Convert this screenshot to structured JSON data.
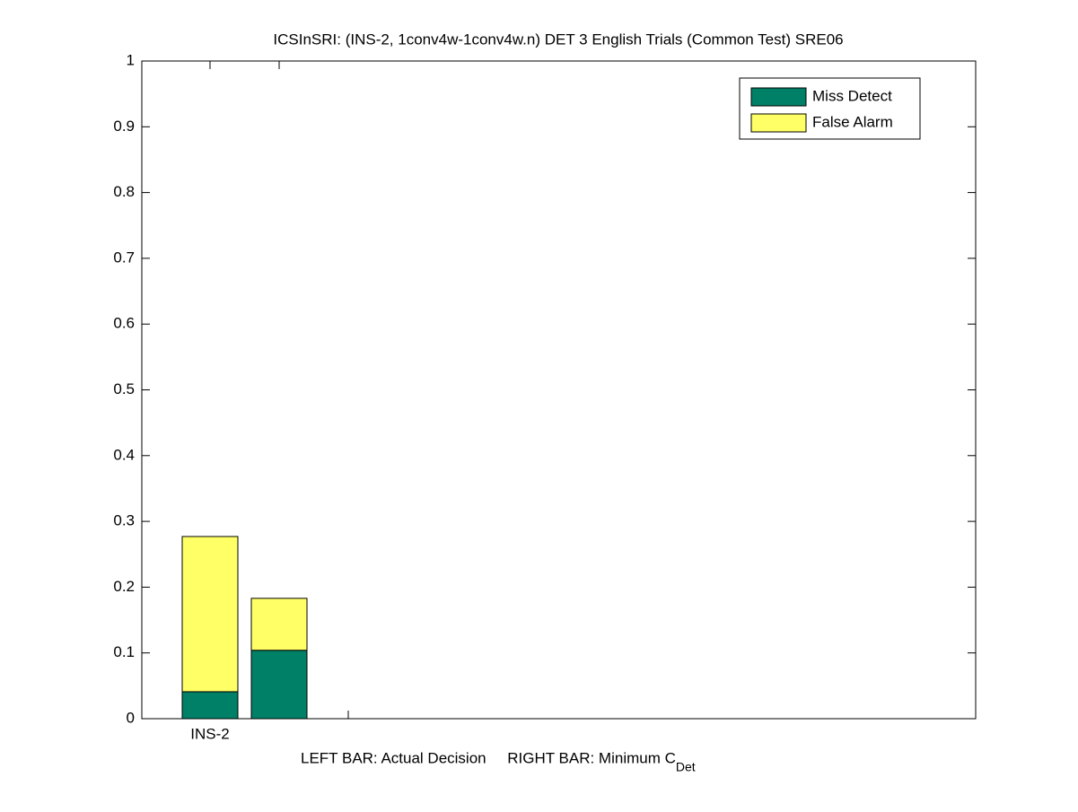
{
  "chart_data": {
    "type": "stacked_bar",
    "title": "ICSInSRI: (INS-2, 1conv4w-1conv4w.n) DET 3 English Trials (Common Test) SRE06",
    "xlabel": {
      "text": "LEFT BAR: Actual Decision     RIGHT BAR: Minimum C",
      "subscript": "Det"
    },
    "categories": [
      "INS-2",
      null
    ],
    "series": [
      {
        "name": "Miss Detect",
        "color": "#008066",
        "values": [
          0.041,
          0.104
        ]
      },
      {
        "name": "False Alarm",
        "color": "#ffff66",
        "values": [
          0.236,
          0.079
        ]
      }
    ],
    "ylim": [
      0,
      1
    ],
    "yticks": [
      0,
      0.1,
      0.2,
      0.3,
      0.4,
      0.5,
      0.6,
      0.7,
      0.8,
      0.9,
      1
    ],
    "legend": "upper-right"
  }
}
